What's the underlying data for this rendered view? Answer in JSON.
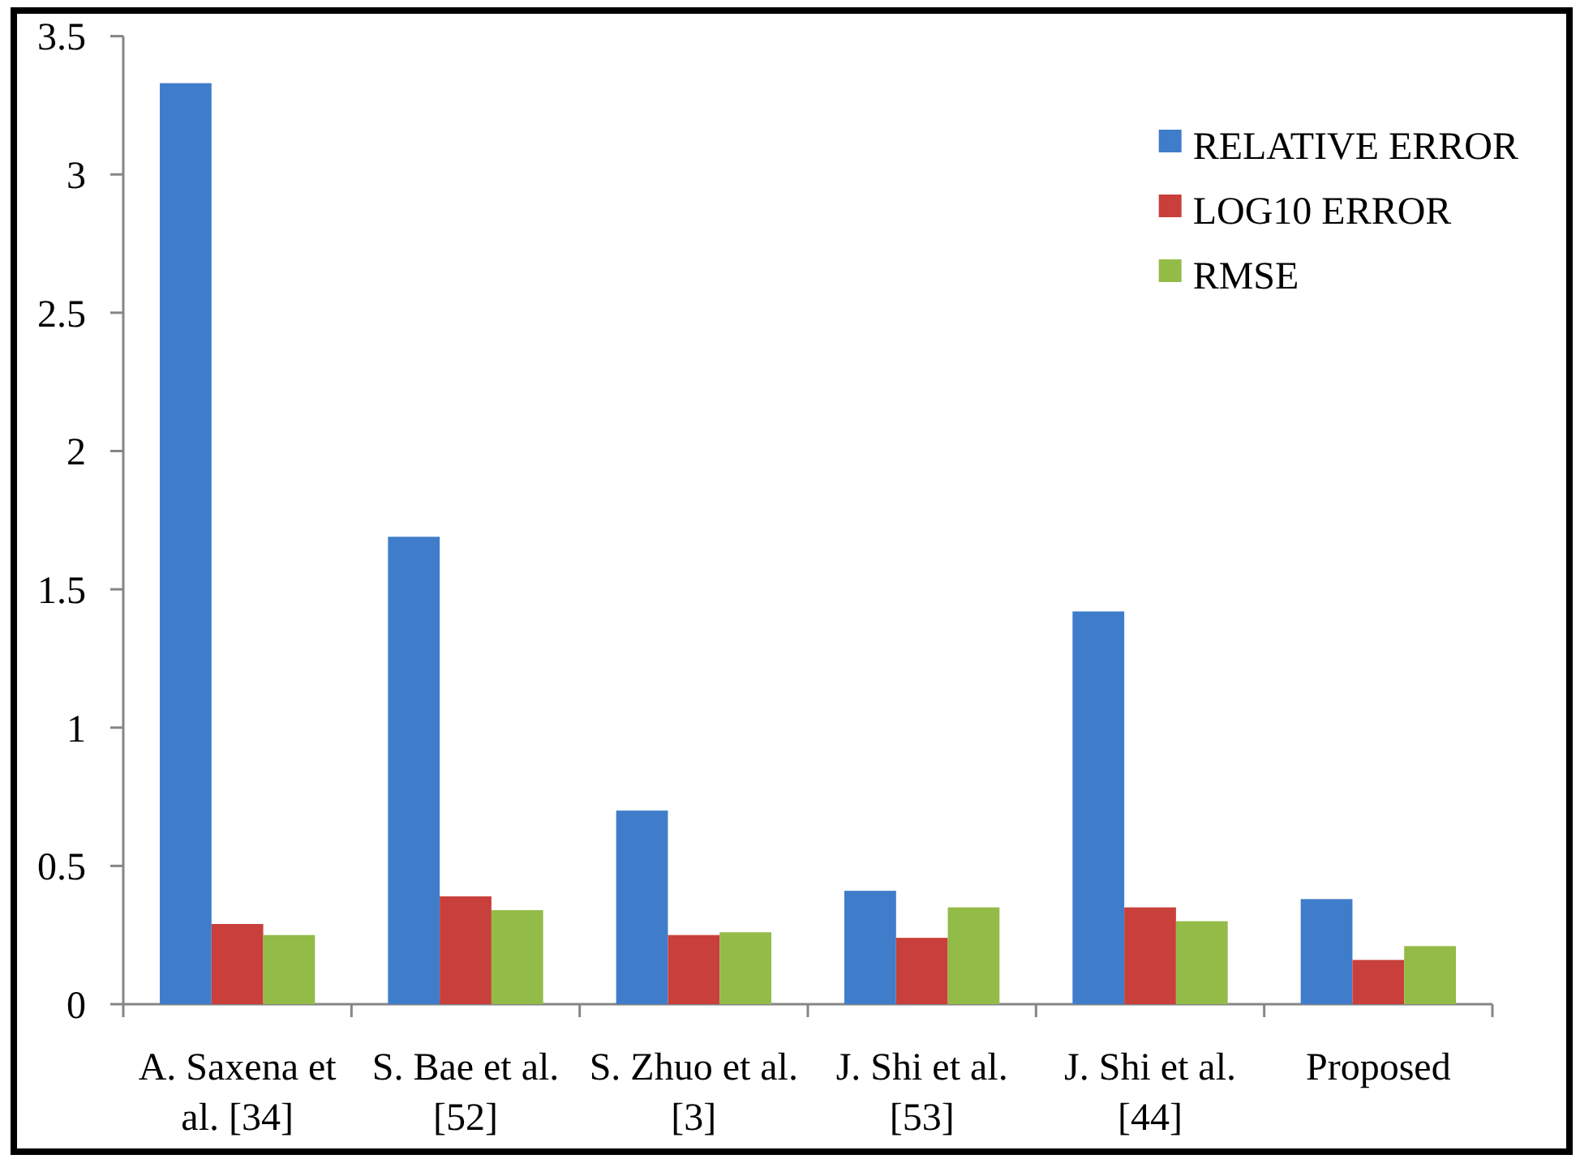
{
  "chart_data": {
    "type": "bar",
    "categories": [
      "A. Saxena et al. [34]",
      "S. Bae et al. [52]",
      "S. Zhuo et al. [3]",
      "J. Shi et al. [53]",
      "J. Shi et al. [44]",
      "Proposed"
    ],
    "series": [
      {
        "name": "RELATIVE ERROR",
        "color": "#3f7dcb",
        "values": [
          3.33,
          1.69,
          0.7,
          0.41,
          1.42,
          0.38
        ]
      },
      {
        "name": "LOG10 ERROR",
        "color": "#c93f3b",
        "values": [
          0.29,
          0.39,
          0.25,
          0.24,
          0.35,
          0.16
        ]
      },
      {
        "name": "RMSE",
        "color": "#93bb47",
        "values": [
          0.25,
          0.34,
          0.26,
          0.35,
          0.3,
          0.21
        ]
      }
    ],
    "ylim": [
      0,
      3.5
    ],
    "yticks": [
      0,
      0.5,
      1,
      1.5,
      2,
      2.5,
      3,
      3.5
    ],
    "legend": "top right"
  }
}
